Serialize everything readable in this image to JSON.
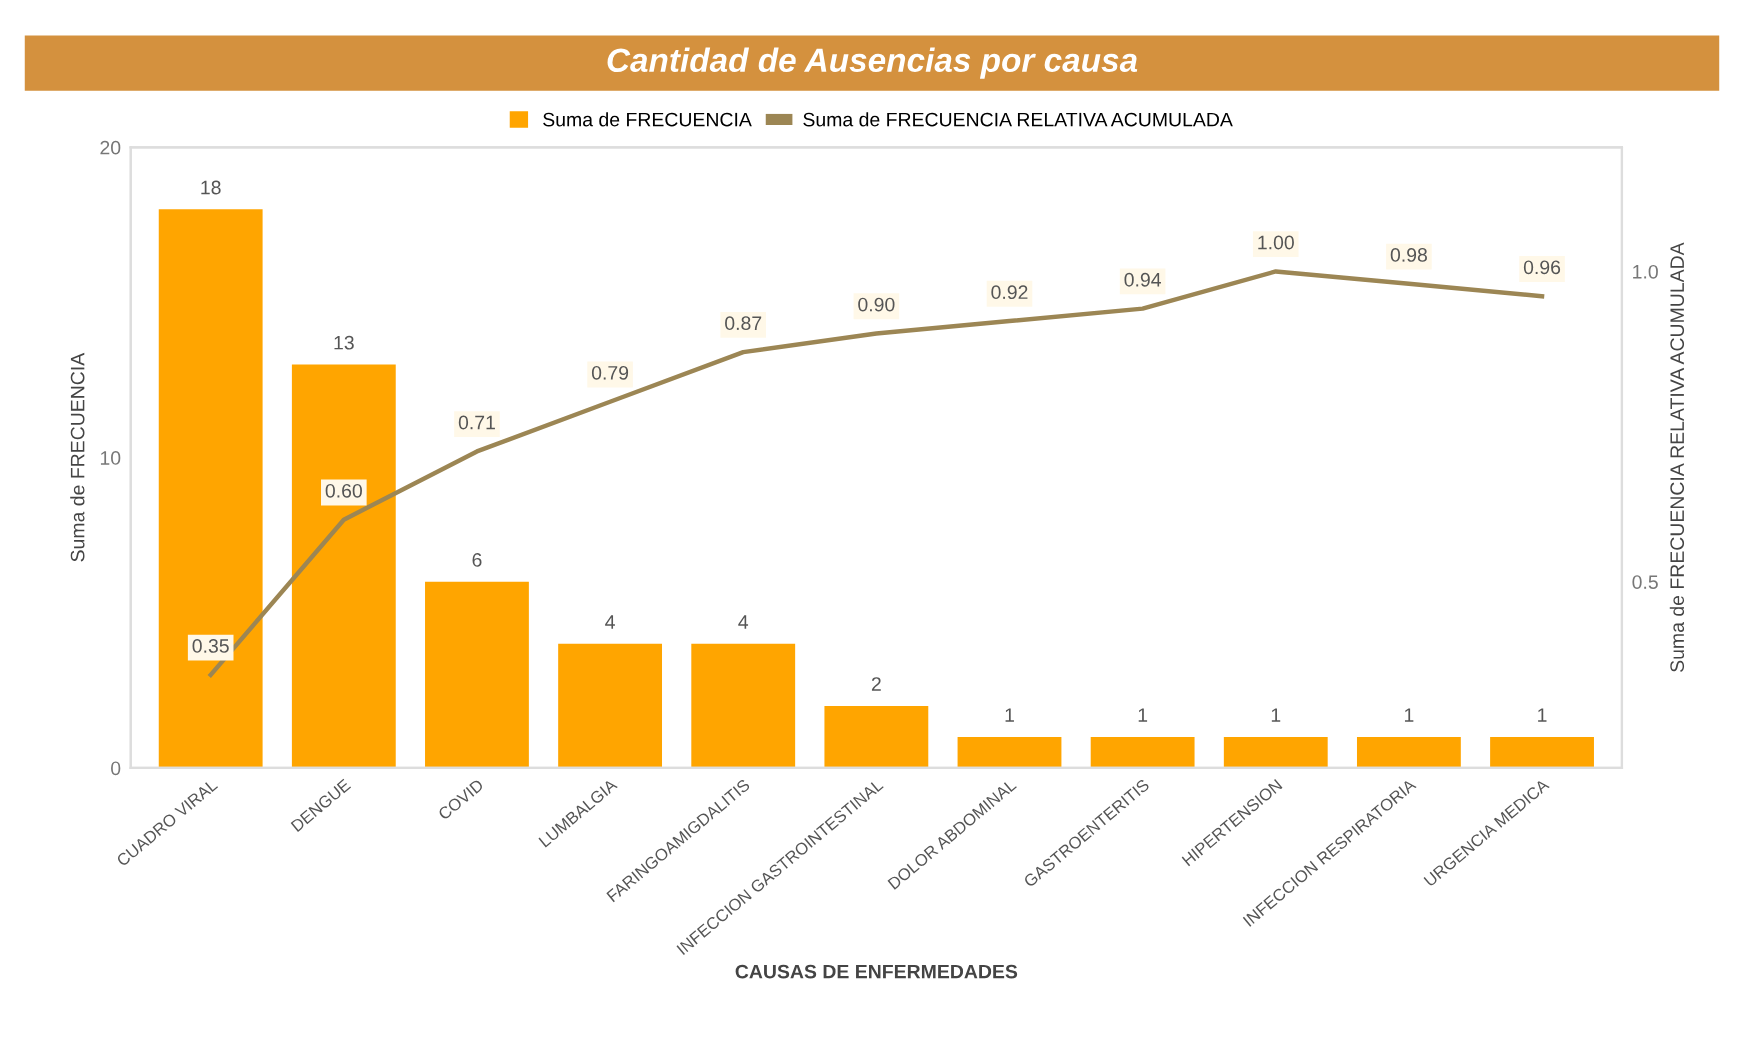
{
  "chart_data": {
    "type": "bar",
    "title": "Cantidad de Ausencias por causa",
    "categories": [
      "CUADRO VIRAL",
      "DENGUE",
      "COVID",
      "LUMBALGIA",
      "FARINGOAMIGDALITIS",
      "INFECCION GASTROINTESTINAL",
      "DOLOR ABDOMINAL",
      "GASTROENTERITIS",
      "HIPERTENSION",
      "INFECCION RESPIRATORIA",
      "URGENCIA MEDICA"
    ],
    "series": [
      {
        "name": "Suma de FRECUENCIA",
        "color": "#ffa500",
        "values": [
          18,
          13,
          6,
          4,
          4,
          2,
          1,
          1,
          1,
          1,
          1
        ],
        "value_labels": [
          "18",
          "13",
          "6",
          "4",
          "4",
          "2",
          "1",
          "1",
          "1",
          "1",
          "1"
        ]
      },
      {
        "name": "Suma de FRECUENCIA RELATIVA ACUMULADA",
        "type": "line",
        "axis": "y2",
        "color": "#9c8654",
        "values": [
          0.35,
          0.6,
          0.71,
          0.79,
          0.87,
          0.9,
          0.92,
          0.94,
          1.0,
          0.98,
          0.96
        ],
        "value_labels": [
          "0.35",
          "0.60",
          "0.71",
          "0.79",
          "0.87",
          "0.90",
          "0.92",
          "0.94",
          "1.00",
          "0.98",
          "0.96"
        ]
      }
    ],
    "xlabel": "CAUSAS DE ENFERMEDADES",
    "ylabel": "Suma de FRECUENCIA",
    "y2label": "Suma de FRECUENCIA RELATIVA ACUMULADA",
    "ylim": [
      0,
      20
    ],
    "yticks": [
      0,
      10,
      20
    ],
    "y2lim": [
      0.2,
      1.2
    ],
    "y2ticks": [
      {
        "value": 0.5,
        "label": "0.5"
      },
      {
        "value": 1.0,
        "label": "1.0"
      }
    ],
    "legend": "top",
    "grid": false
  }
}
